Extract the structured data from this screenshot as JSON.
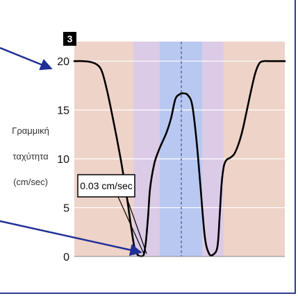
{
  "chart_data": {
    "type": "line",
    "panel_label": "3",
    "ylabel_lines": [
      "Γραμμική",
      "ταχύτητα",
      "(cm/sec)"
    ],
    "ylim": [
      0,
      22
    ],
    "yticks": [
      "0",
      "5",
      "10",
      "15",
      "20"
    ],
    "grid": true,
    "annotation": "0.03 cm/sec",
    "region_colors": [
      "#eed3c8",
      "#dccbe6",
      "#b9c8f0",
      "#dccbe6",
      "#eed3c8"
    ],
    "line_color": "#000000",
    "arrow_color": "#1f2f96",
    "series": [
      {
        "x": [
          0,
          4,
          8,
          11,
          13,
          15,
          18,
          22,
          25,
          27,
          28.5,
          30,
          31,
          32,
          33,
          34,
          35,
          36,
          38,
          40,
          42,
          44,
          46,
          48,
          50,
          52,
          54,
          56,
          58,
          60,
          62,
          64,
          66,
          68,
          69,
          70,
          71,
          72,
          73,
          74,
          76,
          78,
          80,
          82,
          84,
          86,
          88,
          90,
          92,
          94,
          96,
          98,
          100
        ],
        "values": [
          20,
          20,
          19.9,
          19.6,
          19,
          17.5,
          14.5,
          10,
          6,
          3,
          1,
          0.2,
          0.05,
          0.03,
          0.2,
          1.5,
          4,
          7,
          9.5,
          10.8,
          11.8,
          12.8,
          14.2,
          16.1,
          16.6,
          16.7,
          16.5,
          15.5,
          12,
          7,
          2,
          0.3,
          0.2,
          1,
          4,
          7.5,
          9.2,
          9.8,
          10,
          10.1,
          10.5,
          11.5,
          13,
          15,
          17,
          18.8,
          19.8,
          20,
          20,
          20,
          20,
          20,
          20
        ]
      }
    ]
  }
}
